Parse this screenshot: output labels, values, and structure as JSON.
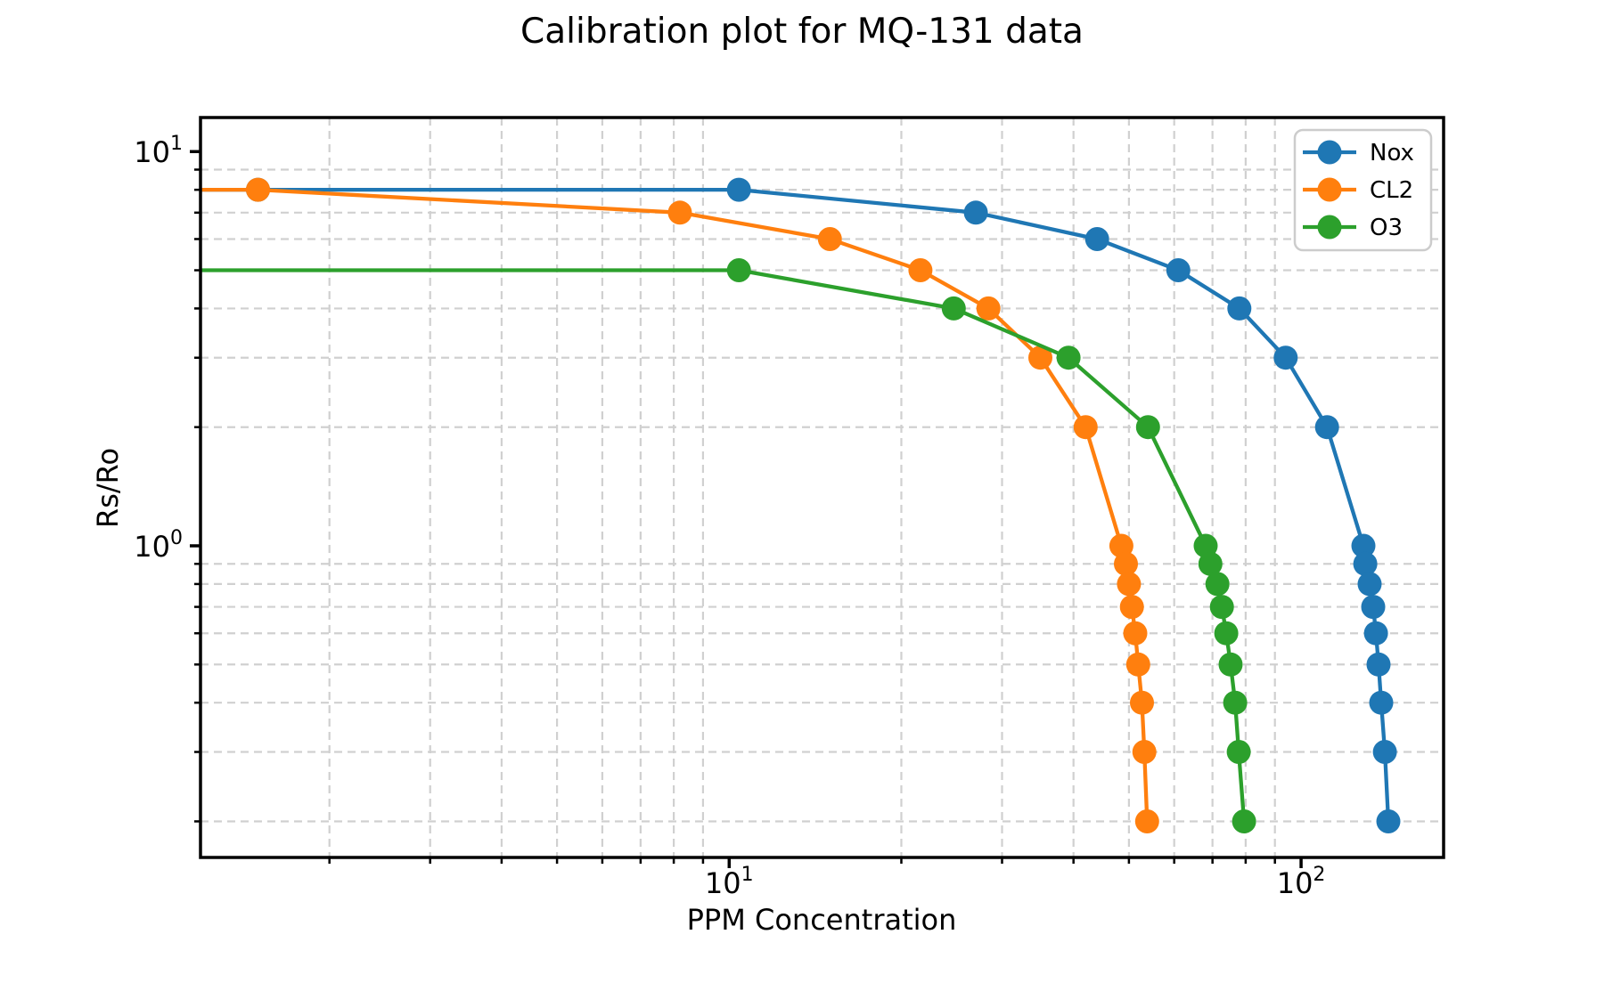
{
  "figure": {
    "background": "#ffffff"
  },
  "chart_data": {
    "type": "line",
    "title": "Calibration plot for MQ-131 data",
    "xlabel": "PPM Concentration",
    "ylabel": "Rs/Ro",
    "x_scale": "log",
    "y_scale": "log",
    "xlim": [
      1.19,
      177.5
    ],
    "ylim": [
      0.162,
      12.2
    ],
    "grid": {
      "which": "minor",
      "style": "dashed",
      "color": "#d0d0d0"
    },
    "x_major_ticks": [
      10,
      100
    ],
    "x_minor_ticks": [
      2,
      3,
      4,
      5,
      6,
      7,
      8,
      9,
      20,
      30,
      40,
      50,
      60,
      70,
      80,
      90
    ],
    "y_major_ticks": [
      1,
      10
    ],
    "y_minor_ticks": [
      0.2,
      0.3,
      0.4,
      0.5,
      0.6,
      0.7,
      0.8,
      0.9,
      2,
      3,
      4,
      5,
      6,
      7,
      8,
      9
    ],
    "x_tick_labels": [
      {
        "value": 10,
        "base": "10",
        "exp": "1"
      },
      {
        "value": 100,
        "base": "10",
        "exp": "2"
      }
    ],
    "y_tick_labels": [
      {
        "value": 1,
        "base": "10",
        "exp": "0"
      },
      {
        "value": 10,
        "base": "10",
        "exp": "1"
      }
    ],
    "legend": {
      "position": "upper right",
      "entries": [
        "Nox",
        "CL2",
        "O3"
      ]
    },
    "series": [
      {
        "name": "Nox",
        "color": "#1f77b4",
        "points": [
          [
            1.1,
            8
          ],
          [
            1.5,
            8
          ],
          [
            10.4,
            8
          ],
          [
            27,
            7
          ],
          [
            44,
            6
          ],
          [
            61,
            5
          ],
          [
            78,
            4
          ],
          [
            94,
            3
          ],
          [
            111,
            2
          ],
          [
            128.5,
            1
          ],
          [
            129.5,
            0.9
          ],
          [
            131.8,
            0.8
          ],
          [
            133.7,
            0.7
          ],
          [
            135.2,
            0.6
          ],
          [
            136.6,
            0.5
          ],
          [
            138.1,
            0.4
          ],
          [
            140.1,
            0.3
          ],
          [
            142.1,
            0.2
          ]
        ]
      },
      {
        "name": "CL2",
        "color": "#ff7f0e",
        "points": [
          [
            1.1,
            8
          ],
          [
            1.5,
            8
          ],
          [
            8.2,
            7
          ],
          [
            15,
            6
          ],
          [
            21.6,
            5
          ],
          [
            28.4,
            4
          ],
          [
            35,
            3
          ],
          [
            42,
            2
          ],
          [
            48.5,
            1
          ],
          [
            49.4,
            0.9
          ],
          [
            50,
            0.8
          ],
          [
            50.6,
            0.7
          ],
          [
            51.3,
            0.6
          ],
          [
            51.9,
            0.5
          ],
          [
            52.7,
            0.4
          ],
          [
            53.2,
            0.3
          ],
          [
            53.8,
            0.2
          ]
        ]
      },
      {
        "name": "O3",
        "color": "#2ca02c",
        "points": [
          [
            1.1,
            5
          ],
          [
            10.4,
            5
          ],
          [
            24.7,
            4
          ],
          [
            39.2,
            3
          ],
          [
            54,
            2
          ],
          [
            68.1,
            1
          ],
          [
            69.4,
            0.9
          ],
          [
            71.4,
            0.8
          ],
          [
            72.7,
            0.7
          ],
          [
            74,
            0.6
          ],
          [
            75.3,
            0.5
          ],
          [
            76.7,
            0.4
          ],
          [
            77.8,
            0.3
          ],
          [
            79.5,
            0.2
          ]
        ]
      }
    ]
  }
}
